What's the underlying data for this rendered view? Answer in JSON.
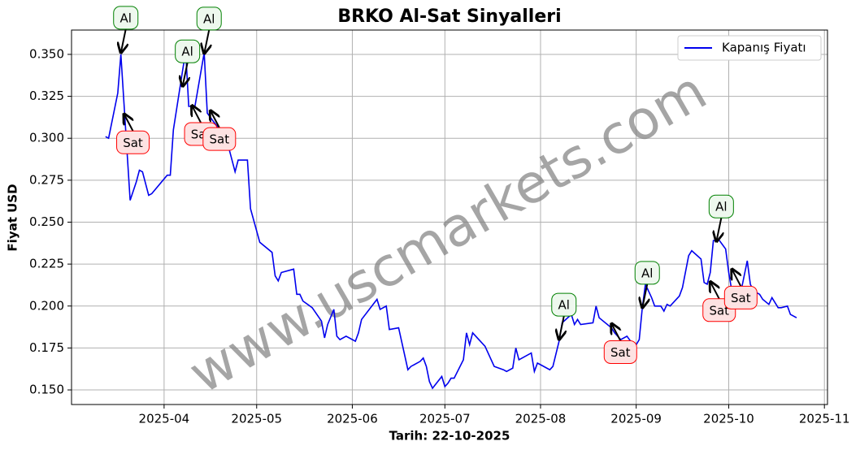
{
  "chart_data": {
    "type": "line",
    "title": "BRKO Al-Sat Sinyalleri",
    "xlabel": "Tarih: 22-10-2025",
    "ylabel": "Fiyat USD",
    "watermark": "www.uscmarkets.com",
    "legend": "upper right",
    "grid": true,
    "xlim": [
      61,
      306
    ],
    "ylim": [
      0.1413,
      0.3645
    ],
    "xticks": [
      {
        "value": 91,
        "label": "2025-04"
      },
      {
        "value": 121,
        "label": "2025-05"
      },
      {
        "value": 152,
        "label": "2025-06"
      },
      {
        "value": 182,
        "label": "2025-07"
      },
      {
        "value": 213,
        "label": "2025-08"
      },
      {
        "value": 244,
        "label": "2025-09"
      },
      {
        "value": 274,
        "label": "2025-10"
      },
      {
        "value": 305,
        "label": "2025-11"
      }
    ],
    "yticks": [
      {
        "value": 0.15,
        "label": "0.150"
      },
      {
        "value": 0.175,
        "label": "0.175"
      },
      {
        "value": 0.2,
        "label": "0.200"
      },
      {
        "value": 0.225,
        "label": "0.225"
      },
      {
        "value": 0.25,
        "label": "0.250"
      },
      {
        "value": 0.275,
        "label": "0.275"
      },
      {
        "value": 0.3,
        "label": "0.300"
      },
      {
        "value": 0.325,
        "label": "0.325"
      },
      {
        "value": 0.35,
        "label": "0.350"
      }
    ],
    "series": [
      {
        "name": "Kapanış Fiyatı",
        "color": "#0000ee",
        "x": [
          72,
          73,
          76,
          77,
          80,
          82,
          83,
          84,
          86,
          87,
          92,
          93,
          94,
          98,
          99,
          101,
          104,
          105,
          107,
          110,
          112,
          114,
          115,
          118,
          119,
          122,
          126,
          127,
          128,
          129,
          133,
          134,
          135,
          136,
          139,
          142,
          143,
          144,
          146,
          147,
          148,
          150,
          153,
          154,
          155,
          160,
          161,
          163,
          164,
          167,
          170,
          171,
          174,
          175,
          176,
          177,
          178,
          181,
          182,
          183,
          184,
          185,
          188,
          189,
          190,
          191,
          195,
          198,
          201,
          202,
          204,
          205,
          206,
          210,
          211,
          212,
          213,
          216,
          217,
          219,
          220,
          223,
          224,
          225,
          226,
          230,
          231,
          232,
          236,
          237,
          239,
          241,
          243,
          244,
          245,
          246,
          247,
          249,
          250,
          252,
          253,
          254,
          255,
          258,
          259,
          261,
          262,
          265,
          266,
          267,
          268,
          269,
          271,
          273,
          274,
          275,
          278,
          280,
          281,
          282,
          284,
          285,
          287,
          288,
          290,
          291,
          293,
          294,
          296
        ],
        "values": [
          0.301,
          0.3,
          0.327,
          0.35,
          0.263,
          0.274,
          0.281,
          0.28,
          0.266,
          0.267,
          0.278,
          0.278,
          0.305,
          0.352,
          0.319,
          0.319,
          0.351,
          0.315,
          0.31,
          0.303,
          0.294,
          0.28,
          0.287,
          0.287,
          0.258,
          0.238,
          0.232,
          0.218,
          0.215,
          0.22,
          0.222,
          0.207,
          0.207,
          0.203,
          0.199,
          0.191,
          0.181,
          0.189,
          0.198,
          0.182,
          0.18,
          0.182,
          0.179,
          0.184,
          0.192,
          0.204,
          0.198,
          0.2,
          0.186,
          0.187,
          0.162,
          0.164,
          0.167,
          0.169,
          0.164,
          0.155,
          0.151,
          0.158,
          0.152,
          0.154,
          0.157,
          0.157,
          0.168,
          0.184,
          0.177,
          0.184,
          0.176,
          0.164,
          0.162,
          0.161,
          0.163,
          0.175,
          0.168,
          0.172,
          0.161,
          0.166,
          0.165,
          0.162,
          0.164,
          0.179,
          0.19,
          0.195,
          0.189,
          0.192,
          0.189,
          0.19,
          0.2,
          0.193,
          0.187,
          0.184,
          0.18,
          0.182,
          0.177,
          0.177,
          0.18,
          0.199,
          0.213,
          0.205,
          0.2,
          0.2,
          0.197,
          0.201,
          0.2,
          0.206,
          0.211,
          0.23,
          0.233,
          0.228,
          0.214,
          0.213,
          0.22,
          0.239,
          0.239,
          0.234,
          0.22,
          0.209,
          0.209,
          0.227,
          0.213,
          0.209,
          0.207,
          0.204,
          0.201,
          0.205,
          0.199,
          0.199,
          0.2,
          0.195,
          0.193
        ]
      }
    ],
    "signals": [
      {
        "label": "Al",
        "x": 77,
        "y": 0.351
      },
      {
        "label": "Sat",
        "x": 78,
        "y": 0.3145
      },
      {
        "label": "Al",
        "x": 97,
        "y": 0.331
      },
      {
        "label": "Sat",
        "x": 100,
        "y": 0.3195
      },
      {
        "label": "Al",
        "x": 104,
        "y": 0.3505
      },
      {
        "label": "Sat",
        "x": 106,
        "y": 0.3165
      },
      {
        "label": "Al",
        "x": 219,
        "y": 0.18
      },
      {
        "label": "Sat",
        "x": 236,
        "y": 0.1895
      },
      {
        "label": "Al",
        "x": 246,
        "y": 0.199
      },
      {
        "label": "Sat",
        "x": 268,
        "y": 0.2145
      },
      {
        "label": "Al",
        "x": 270,
        "y": 0.2385
      },
      {
        "label": "Sat",
        "x": 275,
        "y": 0.222
      }
    ]
  }
}
